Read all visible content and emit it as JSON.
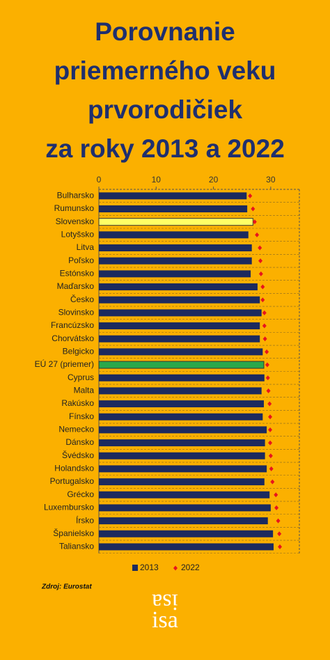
{
  "chart_data": {
    "type": "hbar_dot",
    "title": [
      "Porovnanie",
      "priemerného veku",
      "prvorodičiek",
      "za roky 2013 a 2022"
    ],
    "categories": [
      "Bulharsko",
      "Rumunsko",
      "Slovensko",
      "Lotyšsko",
      "Litva",
      "Poľsko",
      "Estónsko",
      "Maďarsko",
      "Česko",
      "Slovinsko",
      "Francúzsko",
      "Chorvátsko",
      "Belgicko",
      "EÚ 27 (priemer)",
      "Cyprus",
      "Malta",
      "Rakúsko",
      "Fínsko",
      "Nemecko",
      "Dánsko",
      "Švédsko",
      "Holandsko",
      "Portugalsko",
      "Grécko",
      "Luxembursko",
      "Írsko",
      "Španielsko",
      "Taliansko"
    ],
    "series": [
      {
        "name": "2013",
        "color": "#1c2a5e",
        "colors": [
          "#1c2a5e",
          "#1c2a5e",
          "#ffff66",
          "#1c2a5e",
          "#1c2a5e",
          "#1c2a5e",
          "#1c2a5e",
          "#1c2a5e",
          "#1c2a5e",
          "#1c2a5e",
          "#1c2a5e",
          "#1c2a5e",
          "#1c2a5e",
          "#2aa84a",
          "#1c2a5e",
          "#1c2a5e",
          "#1c2a5e",
          "#1c2a5e",
          "#1c2a5e",
          "#1c2a5e",
          "#1c2a5e",
          "#1c2a5e",
          "#1c2a5e",
          "#1c2a5e",
          "#1c2a5e",
          "#1c2a5e",
          "#1c2a5e",
          "#1c2a5e"
        ],
        "values": [
          25.8,
          25.9,
          26.9,
          26.1,
          26.7,
          26.7,
          26.5,
          27.7,
          28.1,
          28.4,
          28.1,
          28.1,
          28.6,
          28.8,
          28.9,
          28.4,
          28.8,
          28.6,
          29.3,
          29.0,
          29.0,
          29.3,
          28.9,
          29.8,
          30.0,
          29.5,
          30.4,
          30.5
        ]
      },
      {
        "name": "2022",
        "color": "#e8141c",
        "values": [
          26.4,
          26.9,
          27.2,
          27.6,
          28.1,
          28.2,
          28.3,
          28.6,
          28.6,
          28.9,
          28.9,
          29.0,
          29.3,
          29.4,
          29.5,
          29.6,
          29.8,
          29.9,
          29.9,
          29.9,
          30.0,
          30.1,
          30.3,
          30.9,
          31.0,
          31.3,
          31.5,
          31.6
        ]
      }
    ],
    "xlim": [
      0,
      35
    ],
    "xticks": [
      0,
      10,
      20,
      30
    ],
    "source": "Zdroj: Eurostat",
    "logo": "isa"
  }
}
